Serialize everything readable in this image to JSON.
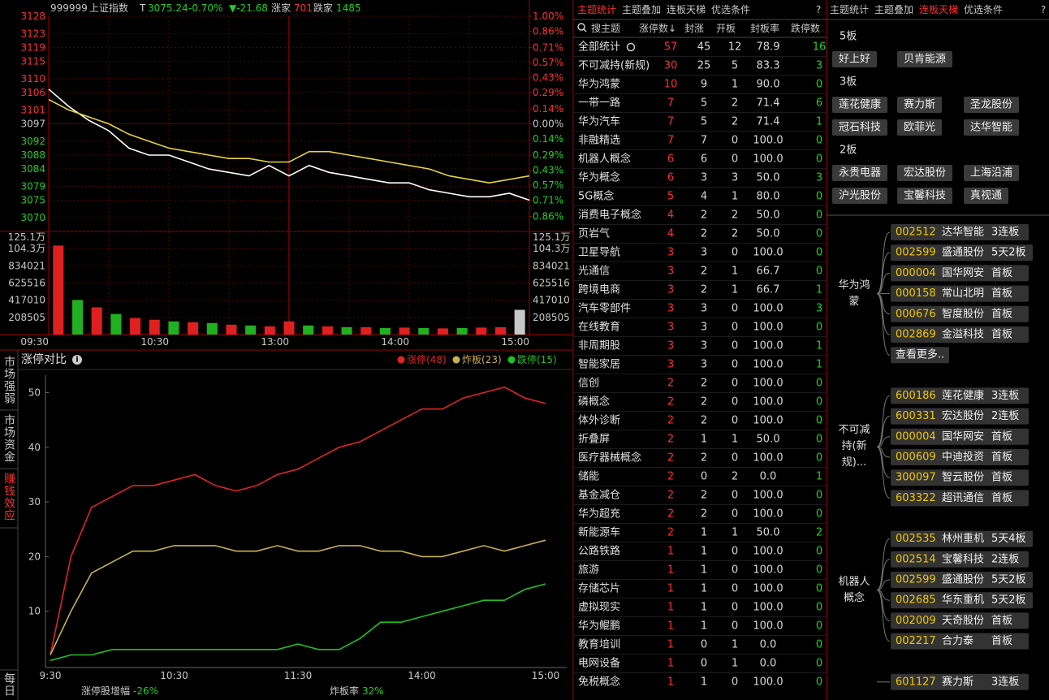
{
  "header": {
    "code": "999999",
    "name": "上证指数",
    "flag": "T",
    "price": "3075.24",
    "change_pct": "-0.70%",
    "change": "▼-21.68",
    "up_label": "涨家",
    "up_count": "701",
    "down_label": "跌家",
    "down_count": "1485"
  },
  "chart_data": [
    {
      "type": "line",
      "categories": [
        "09:30",
        null,
        null,
        null,
        null,
        null,
        "10:30",
        null,
        null,
        null,
        null,
        null,
        "13:00",
        null,
        null,
        null,
        null,
        null,
        "14:00",
        null,
        null,
        null,
        null,
        null,
        "15:00"
      ],
      "series": [
        {
          "color": "#ffffff",
          "values": [
            3107,
            3102,
            3098,
            3095,
            3090,
            3088,
            3088,
            3086,
            3084,
            3083,
            3082,
            3085,
            3082,
            3085,
            3083,
            3082,
            3081,
            3080,
            3080,
            3078,
            3077,
            3076,
            3076,
            3077,
            3075
          ]
        },
        {
          "color": "#e6d33c",
          "values": [
            3104,
            3101,
            3099,
            3097,
            3094,
            3092,
            3090,
            3089,
            3088,
            3087,
            3087,
            3086,
            3086,
            3089,
            3089,
            3088,
            3087,
            3086,
            3085,
            3084,
            3082,
            3081,
            3080,
            3081,
            3082
          ]
        }
      ],
      "ylim": [
        3066,
        3128
      ],
      "yticks": [
        3128,
        3123,
        3119,
        3115,
        3110,
        3106,
        3101,
        3097,
        3092,
        3088,
        3084,
        3079,
        3075,
        3070
      ],
      "y2lim": [
        -1.0,
        1.0
      ],
      "y2ticks": [
        {
          "value": 1.0,
          "label": "1.00%"
        },
        {
          "value": 0.86,
          "label": "0.86%"
        },
        {
          "value": 0.71,
          "label": "0.71%"
        },
        {
          "value": 0.57,
          "label": "0.57%"
        },
        {
          "value": 0.43,
          "label": "0.43%"
        },
        {
          "value": 0.29,
          "label": "0.29%"
        },
        {
          "value": 0.14,
          "label": "0.14%"
        },
        {
          "value": 0.0,
          "label": "0.00%"
        },
        {
          "value": -0.14,
          "label": "0.14%"
        },
        {
          "value": -0.29,
          "label": "0.29%"
        },
        {
          "value": -0.43,
          "label": "0.43%"
        },
        {
          "value": -0.57,
          "label": "0.57%"
        },
        {
          "value": -0.71,
          "label": "0.71%"
        },
        {
          "value": -0.86,
          "label": "0.86%"
        }
      ],
      "grid": true
    },
    {
      "type": "bar",
      "values": [
        1080000,
        420000,
        330000,
        250000,
        200000,
        180000,
        160000,
        150000,
        140000,
        120000,
        110000,
        100000,
        160000,
        110000,
        100000,
        90000,
        90000,
        80000,
        85000,
        80000,
        75000,
        80000,
        85000,
        90000,
        300000
      ],
      "colors": [
        "#e02020",
        "#20b020",
        "#e02020",
        "#20b020",
        "#e02020",
        "#e02020",
        "#20b020",
        "#e02020",
        "#20b020",
        "#e02020",
        "#20b020",
        "#e02020",
        "#e02020",
        "#20b020",
        "#e02020",
        "#20b020",
        "#e02020",
        "#20b020",
        "#e02020",
        "#20b020",
        "#e02020",
        "#20b020",
        "#e02020",
        "#e02020",
        "#c8c8c8"
      ],
      "ylim": [
        0,
        1251030
      ],
      "yticks": [
        {
          "value": 1251000,
          "label": "125.1万"
        },
        {
          "value": 1043000,
          "label": "104.3万"
        },
        834021,
        625516,
        417010,
        208505
      ]
    },
    {
      "type": "line",
      "title": "涨停对比",
      "categories": [
        "9:30",
        null,
        null,
        null,
        null,
        null,
        "10:30",
        null,
        null,
        null,
        null,
        null,
        "11:30",
        null,
        null,
        null,
        null,
        null,
        "14:00",
        null,
        null,
        null,
        null,
        null,
        "15:00"
      ],
      "series": [
        {
          "name": "涨停(48)",
          "color": "#e02424",
          "values": [
            2,
            20,
            29,
            31,
            33,
            33,
            34,
            35,
            33,
            32,
            33,
            35,
            36,
            38,
            40,
            41,
            43,
            45,
            47,
            47,
            49,
            50,
            51,
            49,
            48
          ]
        },
        {
          "name": "炸板(23)",
          "color": "#c8b050",
          "values": [
            2,
            10,
            17,
            19,
            21,
            21,
            22,
            22,
            22,
            21,
            21,
            22,
            21,
            21,
            22,
            22,
            21,
            21,
            20,
            20,
            21,
            22,
            21,
            22,
            23
          ]
        },
        {
          "name": "跌停(15)",
          "color": "#20c020",
          "values": [
            1,
            2,
            2,
            3,
            3,
            3,
            3,
            3,
            3,
            3,
            3,
            3,
            4,
            3,
            3,
            5,
            8,
            8,
            9,
            10,
            11,
            12,
            12,
            14,
            15
          ]
        }
      ],
      "ylim": [
        0,
        52
      ],
      "yticks": [
        10,
        20,
        30,
        40,
        50
      ]
    }
  ],
  "side_tabs": [
    "市场强弱",
    "市场资金",
    "赚钱效应",
    "每日"
  ],
  "limit_footer": [
    {
      "label": "涨停股增幅",
      "value": "-26%"
    },
    {
      "label": "炸板率",
      "value": "32%"
    }
  ],
  "theme_table": {
    "tabs": [
      "主题统计",
      "主题叠加",
      "连板天梯",
      "优选条件"
    ],
    "help": "?",
    "columns": [
      "搜主题",
      "涨停数↓",
      "封涨",
      "开板",
      "封板率",
      "跌停数"
    ],
    "rows": [
      [
        "全部统计",
        "57",
        "45",
        "12",
        "78.9",
        "16"
      ],
      [
        "不可减持(新规)",
        "30",
        "25",
        "5",
        "83.3",
        "3"
      ],
      [
        "华为鸿蒙",
        "10",
        "9",
        "1",
        "90.0",
        "0"
      ],
      [
        "一带一路",
        "7",
        "5",
        "2",
        "71.4",
        "6"
      ],
      [
        "华为汽车",
        "7",
        "5",
        "2",
        "71.4",
        "1"
      ],
      [
        "非融精选",
        "7",
        "7",
        "0",
        "100.0",
        "0"
      ],
      [
        "机器人概念",
        "6",
        "6",
        "0",
        "100.0",
        "0"
      ],
      [
        "华为概念",
        "6",
        "3",
        "3",
        "50.0",
        "3"
      ],
      [
        "5G概念",
        "5",
        "4",
        "1",
        "80.0",
        "0"
      ],
      [
        "消费电子概念",
        "4",
        "2",
        "2",
        "50.0",
        "0"
      ],
      [
        "页岩气",
        "4",
        "2",
        "2",
        "50.0",
        "0"
      ],
      [
        "卫星导航",
        "3",
        "3",
        "0",
        "100.0",
        "0"
      ],
      [
        "光通信",
        "3",
        "2",
        "1",
        "66.7",
        "0"
      ],
      [
        "跨境电商",
        "3",
        "2",
        "1",
        "66.7",
        "1"
      ],
      [
        "汽车零部件",
        "3",
        "3",
        "0",
        "100.0",
        "3"
      ],
      [
        "在线教育",
        "3",
        "3",
        "0",
        "100.0",
        "0"
      ],
      [
        "非周期股",
        "3",
        "3",
        "0",
        "100.0",
        "1"
      ],
      [
        "智能家居",
        "3",
        "3",
        "0",
        "100.0",
        "1"
      ],
      [
        "信创",
        "2",
        "2",
        "0",
        "100.0",
        "0"
      ],
      [
        "磷概念",
        "2",
        "2",
        "0",
        "100.0",
        "0"
      ],
      [
        "体外诊断",
        "2",
        "2",
        "0",
        "100.0",
        "0"
      ],
      [
        "折叠屏",
        "2",
        "1",
        "1",
        "50.0",
        "0"
      ],
      [
        "医疗器械概念",
        "2",
        "2",
        "0",
        "100.0",
        "0"
      ],
      [
        "储能",
        "2",
        "0",
        "2",
        "0.0",
        "1"
      ],
      [
        "基金减仓",
        "2",
        "2",
        "0",
        "100.0",
        "0"
      ],
      [
        "华为超充",
        "2",
        "2",
        "0",
        "100.0",
        "0"
      ],
      [
        "新能源车",
        "2",
        "1",
        "1",
        "50.0",
        "2"
      ],
      [
        "公路铁路",
        "1",
        "1",
        "0",
        "100.0",
        "0"
      ],
      [
        "旅游",
        "1",
        "1",
        "0",
        "100.0",
        "0"
      ],
      [
        "存储芯片",
        "1",
        "1",
        "0",
        "100.0",
        "0"
      ],
      [
        "虚拟现实",
        "1",
        "1",
        "0",
        "100.0",
        "0"
      ],
      [
        "华为鲲鹏",
        "1",
        "1",
        "0",
        "100.0",
        "0"
      ],
      [
        "教育培训",
        "1",
        "0",
        "1",
        "0.0",
        "0"
      ],
      [
        "电网设备",
        "1",
        "0",
        "1",
        "0.0",
        "0"
      ],
      [
        "免税概念",
        "1",
        "1",
        "0",
        "100.0",
        "0"
      ]
    ]
  },
  "ladder": {
    "tabs": [
      "主题统计",
      "主题叠加",
      "连板天梯",
      "优选条件"
    ],
    "help": "?",
    "levels": [
      {
        "label": "5板",
        "stocks": [
          "好上好",
          "贝肯能源"
        ]
      },
      {
        "label": "3板",
        "stocks": [
          "莲花健康",
          "赛力斯",
          "圣龙股份",
          "冠石科技",
          "欧菲光",
          "达华智能"
        ]
      },
      {
        "label": "2板",
        "stocks": [
          "永贵电器",
          "宏达股份",
          "上海沿浦",
          "沪光股份",
          "宝馨科技",
          "真视通"
        ]
      }
    ],
    "groups": [
      {
        "name": "华为鸿蒙",
        "stocks": [
          {
            "code": "002512",
            "name": "达华智能",
            "board": "3连板"
          },
          {
            "code": "002599",
            "name": "盛通股份",
            "board": "5天2板"
          },
          {
            "code": "000004",
            "name": "国华网安",
            "board": "首板"
          },
          {
            "code": "000158",
            "name": "常山北明",
            "board": "首板"
          },
          {
            "code": "000676",
            "name": "智度股份",
            "board": "首板"
          },
          {
            "code": "002869",
            "name": "金溢科技",
            "board": "首板"
          }
        ],
        "more": "查看更多.."
      },
      {
        "name": "不可减持(新规)...",
        "stocks": [
          {
            "code": "600186",
            "name": "莲花健康",
            "board": "3连板"
          },
          {
            "code": "600331",
            "name": "宏达股份",
            "board": "2连板"
          },
          {
            "code": "000004",
            "name": "国华网安",
            "board": "首板"
          },
          {
            "code": "000609",
            "name": "中迪投资",
            "board": "首板"
          },
          {
            "code": "300097",
            "name": "智云股份",
            "board": "首板"
          },
          {
            "code": "603322",
            "name": "超讯通信",
            "board": "首板"
          }
        ]
      },
      {
        "name": "机器人概念",
        "stocks": [
          {
            "code": "002535",
            "name": "林州重机",
            "board": "5天4板"
          },
          {
            "code": "002514",
            "name": "宝馨科技",
            "board": "2连板"
          },
          {
            "code": "002599",
            "name": "盛通股份",
            "board": "5天2板"
          },
          {
            "code": "002685",
            "name": "华东重机",
            "board": "5天2板"
          },
          {
            "code": "002009",
            "name": "天奇股份",
            "board": "首板"
          },
          {
            "code": "002217",
            "name": "合力泰",
            "board": "首板"
          }
        ]
      },
      {
        "stocks": [
          {
            "code": "601127",
            "name": "赛力斯",
            "board": "3连板"
          }
        ]
      }
    ]
  }
}
